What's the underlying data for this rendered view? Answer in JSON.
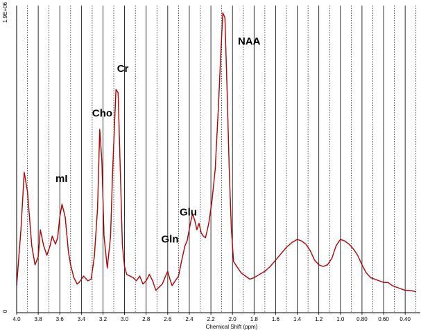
{
  "chart_data": {
    "type": "line",
    "title": "",
    "xlabel": "Chemical Shift (ppm)",
    "ylabel": "",
    "x_reversed": true,
    "xlim": [
      4.0,
      0.3
    ],
    "ylim": [
      0,
      1900000.0
    ],
    "ytick_labels": [
      "0",
      "1.9E+06"
    ],
    "xtick_labels": [
      "4.0",
      "3.8",
      "3.6",
      "3.4",
      "3.2",
      "3.0",
      "2.8",
      "2.6",
      "2.4",
      "2.2",
      "2.0",
      "1.8",
      "1.6",
      "1.4",
      "1.2",
      "1.0",
      "0.80",
      "0.60",
      "0.40"
    ],
    "grid": {
      "major_solid": true,
      "minor_dotted": true
    },
    "series": [
      {
        "role": "measured spectrum",
        "color": "#000000",
        "x": [
          4.0,
          3.96,
          3.93,
          3.9,
          3.86,
          3.83,
          3.8,
          3.78,
          3.75,
          3.72,
          3.69,
          3.67,
          3.64,
          3.62,
          3.6,
          3.58,
          3.55,
          3.52,
          3.5,
          3.47,
          3.44,
          3.42,
          3.38,
          3.34,
          3.31,
          3.28,
          3.25,
          3.23,
          3.21,
          3.19,
          3.16,
          3.13,
          3.11,
          3.08,
          3.06,
          3.04,
          3.02,
          3.0,
          2.98,
          2.95,
          2.92,
          2.89,
          2.86,
          2.83,
          2.8,
          2.77,
          2.74,
          2.71,
          2.68,
          2.65,
          2.62,
          2.6,
          2.58,
          2.56,
          2.53,
          2.5,
          2.47,
          2.44,
          2.42,
          2.39,
          2.37,
          2.35,
          2.33,
          2.31,
          2.29,
          2.27,
          2.25,
          2.22,
          2.19,
          2.16,
          2.13,
          2.11,
          2.09,
          2.07,
          2.05,
          2.03,
          2.01,
          1.99,
          1.97,
          1.95,
          1.92,
          1.88,
          1.84,
          1.8,
          1.75,
          1.7,
          1.65,
          1.6,
          1.55,
          1.5,
          1.45,
          1.4,
          1.36,
          1.32,
          1.28,
          1.24,
          1.2,
          1.16,
          1.12,
          1.08,
          1.04,
          1.0,
          0.96,
          0.92,
          0.88,
          0.84,
          0.8,
          0.76,
          0.72,
          0.68,
          0.64,
          0.6,
          0.56,
          0.52,
          0.48,
          0.44,
          0.4,
          0.36,
          0.32,
          0.3
        ],
        "y": [
          170000,
          520000,
          880000,
          760000,
          420000,
          300000,
          350000,
          520000,
          420000,
          360000,
          420000,
          480000,
          430000,
          470000,
          600000,
          680000,
          600000,
          380000,
          300000,
          220000,
          180000,
          190000,
          230000,
          200000,
          210000,
          350000,
          660000,
          1150000,
          950000,
          480000,
          280000,
          480000,
          900000,
          1400000,
          1380000,
          900000,
          420000,
          290000,
          240000,
          230000,
          220000,
          200000,
          230000,
          180000,
          200000,
          240000,
          200000,
          140000,
          160000,
          180000,
          230000,
          260000,
          210000,
          170000,
          200000,
          230000,
          330000,
          420000,
          450000,
          560000,
          620000,
          580000,
          520000,
          560000,
          500000,
          480000,
          470000,
          560000,
          700000,
          900000,
          1300000,
          1600000,
          1880000,
          1850000,
          1400000,
          900000,
          520000,
          320000,
          300000,
          280000,
          250000,
          230000,
          210000,
          220000,
          240000,
          260000,
          290000,
          330000,
          370000,
          410000,
          440000,
          460000,
          450000,
          430000,
          390000,
          330000,
          300000,
          290000,
          300000,
          340000,
          420000,
          460000,
          450000,
          430000,
          400000,
          360000,
          300000,
          250000,
          220000,
          210000,
          200000,
          190000,
          190000,
          170000,
          160000,
          150000,
          140000,
          140000,
          135000,
          130000
        ]
      },
      {
        "role": "fitted spectrum",
        "color": "#cc0000",
        "x": [
          4.0,
          3.96,
          3.93,
          3.9,
          3.86,
          3.83,
          3.8,
          3.78,
          3.75,
          3.72,
          3.69,
          3.67,
          3.64,
          3.62,
          3.6,
          3.58,
          3.55,
          3.52,
          3.5,
          3.47,
          3.44,
          3.42,
          3.38,
          3.34,
          3.31,
          3.28,
          3.25,
          3.23,
          3.21,
          3.19,
          3.16,
          3.13,
          3.11,
          3.08,
          3.06,
          3.04,
          3.02,
          3.0,
          2.98,
          2.95,
          2.92,
          2.89,
          2.86,
          2.83,
          2.8,
          2.77,
          2.74,
          2.71,
          2.68,
          2.65,
          2.62,
          2.6,
          2.58,
          2.56,
          2.53,
          2.5,
          2.47,
          2.44,
          2.42,
          2.39,
          2.37,
          2.35,
          2.33,
          2.31,
          2.29,
          2.27,
          2.25,
          2.22,
          2.19,
          2.16,
          2.13,
          2.11,
          2.09,
          2.07,
          2.05,
          2.03,
          2.01,
          1.99,
          1.97,
          1.95,
          1.92,
          1.88,
          1.84,
          1.8,
          1.75,
          1.7,
          1.65,
          1.6,
          1.55,
          1.5,
          1.45,
          1.4,
          1.36,
          1.32,
          1.28,
          1.24,
          1.2,
          1.16,
          1.12,
          1.08,
          1.04,
          1.0,
          0.96,
          0.92,
          0.88,
          0.84,
          0.8,
          0.76,
          0.72,
          0.68,
          0.64,
          0.6,
          0.56,
          0.52,
          0.48,
          0.44,
          0.4,
          0.36,
          0.32,
          0.3
        ],
        "y": [
          170000,
          520000,
          880000,
          760000,
          420000,
          300000,
          350000,
          520000,
          420000,
          360000,
          420000,
          480000,
          430000,
          470000,
          600000,
          680000,
          600000,
          380000,
          300000,
          220000,
          180000,
          190000,
          230000,
          200000,
          210000,
          350000,
          660000,
          1150000,
          950000,
          480000,
          280000,
          480000,
          900000,
          1400000,
          1380000,
          900000,
          420000,
          290000,
          240000,
          230000,
          220000,
          200000,
          230000,
          180000,
          200000,
          240000,
          200000,
          140000,
          160000,
          180000,
          230000,
          260000,
          210000,
          170000,
          200000,
          230000,
          330000,
          420000,
          450000,
          560000,
          620000,
          580000,
          520000,
          560000,
          500000,
          480000,
          470000,
          560000,
          700000,
          900000,
          1300000,
          1600000,
          1880000,
          1850000,
          1400000,
          900000,
          520000,
          320000,
          300000,
          280000,
          250000,
          230000,
          210000,
          220000,
          240000,
          260000,
          290000,
          330000,
          370000,
          410000,
          440000,
          460000,
          450000,
          430000,
          390000,
          330000,
          300000,
          290000,
          300000,
          340000,
          420000,
          460000,
          450000,
          430000,
          400000,
          360000,
          300000,
          250000,
          220000,
          210000,
          200000,
          190000,
          190000,
          170000,
          160000,
          150000,
          140000,
          140000,
          135000,
          130000
        ]
      }
    ],
    "annotations": [
      {
        "text": "NAA",
        "x": 1.95,
        "y": 1680000.0
      },
      {
        "text": "Cr",
        "x": 3.07,
        "y": 1510000.0
      },
      {
        "text": "Cho",
        "x": 3.3,
        "y": 1230000.0
      },
      {
        "text": "mI",
        "x": 3.64,
        "y": 820000.0
      },
      {
        "text": "Glu",
        "x": 2.49,
        "y": 610000.0
      },
      {
        "text": "Gln",
        "x": 2.66,
        "y": 440000.0
      }
    ]
  }
}
